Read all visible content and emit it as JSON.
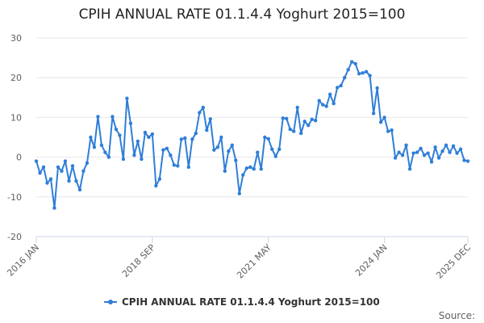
{
  "chart_data": {
    "type": "line",
    "title": "CPIH ANNUAL RATE 01.1.4.4 Yoghurt 2015=100",
    "xlabel": "",
    "ylabel": "",
    "ylim": [
      -20,
      30
    ],
    "yticks": [
      -20,
      -10,
      0,
      10,
      20,
      30
    ],
    "x_tick_labels": [
      "2016 JAN",
      "2018 SEP",
      "2021 MAY",
      "2024 JAN",
      "2025 DEC"
    ],
    "x_tick_index": [
      0,
      32,
      64,
      96,
      119
    ],
    "legend": "bottom-center",
    "series": [
      {
        "name": "CPIH ANNUAL RATE 01.1.4.4 Yoghurt 2015=100",
        "color": "#2f7ed8",
        "values": [
          -1.0,
          -4.0,
          -2.5,
          -6.5,
          -5.5,
          -12.8,
          -2.5,
          -3.5,
          -1.0,
          -6.0,
          -2.2,
          -6.0,
          -8.2,
          -3.5,
          -1.5,
          5.0,
          2.5,
          10.2,
          3.0,
          1.2,
          0.0,
          10.2,
          7.0,
          5.5,
          -0.5,
          14.8,
          8.5,
          0.5,
          4.0,
          -0.5,
          6.2,
          5.0,
          5.8,
          -7.2,
          -5.5,
          1.8,
          2.2,
          0.5,
          -2.0,
          -2.2,
          4.5,
          4.8,
          -2.5,
          4.5,
          6.0,
          11.2,
          12.5,
          6.8,
          9.6,
          1.8,
          2.5,
          5.0,
          -3.5,
          1.5,
          3.0,
          -0.8,
          -9.2,
          -4.5,
          -2.8,
          -2.5,
          -3.0,
          1.2,
          -3.0,
          5.0,
          4.6,
          2.0,
          0.2,
          2.0,
          9.8,
          9.7,
          7.0,
          6.5,
          12.5,
          6.0,
          9.0,
          8.0,
          9.5,
          9.2,
          14.2,
          13.2,
          12.8,
          15.8,
          13.5,
          17.5,
          18.0,
          20.0,
          22.0,
          24.0,
          23.5,
          21.0,
          21.2,
          21.5,
          20.5,
          11.0,
          17.4,
          8.8,
          10.0,
          6.5,
          6.8,
          -0.2,
          1.2,
          0.5,
          3.0,
          -3.0,
          1.0,
          1.2,
          2.2,
          0.5,
          1.0,
          -1.2,
          2.5,
          -0.2,
          1.5,
          3.0,
          1.2,
          2.8,
          1.0,
          2.0,
          -0.8,
          -1.0
        ]
      }
    ]
  },
  "footer": {
    "source_label": "Source:"
  }
}
